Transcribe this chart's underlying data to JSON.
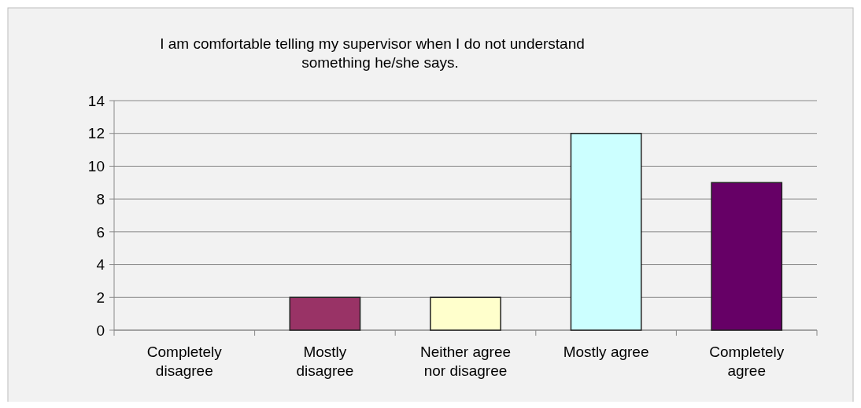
{
  "chart_data": {
    "type": "bar",
    "title": "I am comfortable telling my supervisor when I do not understand\nsomething he/she says.",
    "categories": [
      "Completely\ndisagree",
      "Mostly\ndisagree",
      "Neither agree\nnor disagree",
      "Mostly agree",
      "Completely\nagree"
    ],
    "values": [
      0,
      2,
      2,
      12,
      9
    ],
    "colors": [
      "#9999ff",
      "#993366",
      "#ffffcc",
      "#ccffff",
      "#660066"
    ],
    "ylim": [
      0,
      14
    ],
    "yticks": [
      0,
      2,
      4,
      6,
      8,
      10,
      12,
      14
    ],
    "grid": "y"
  }
}
